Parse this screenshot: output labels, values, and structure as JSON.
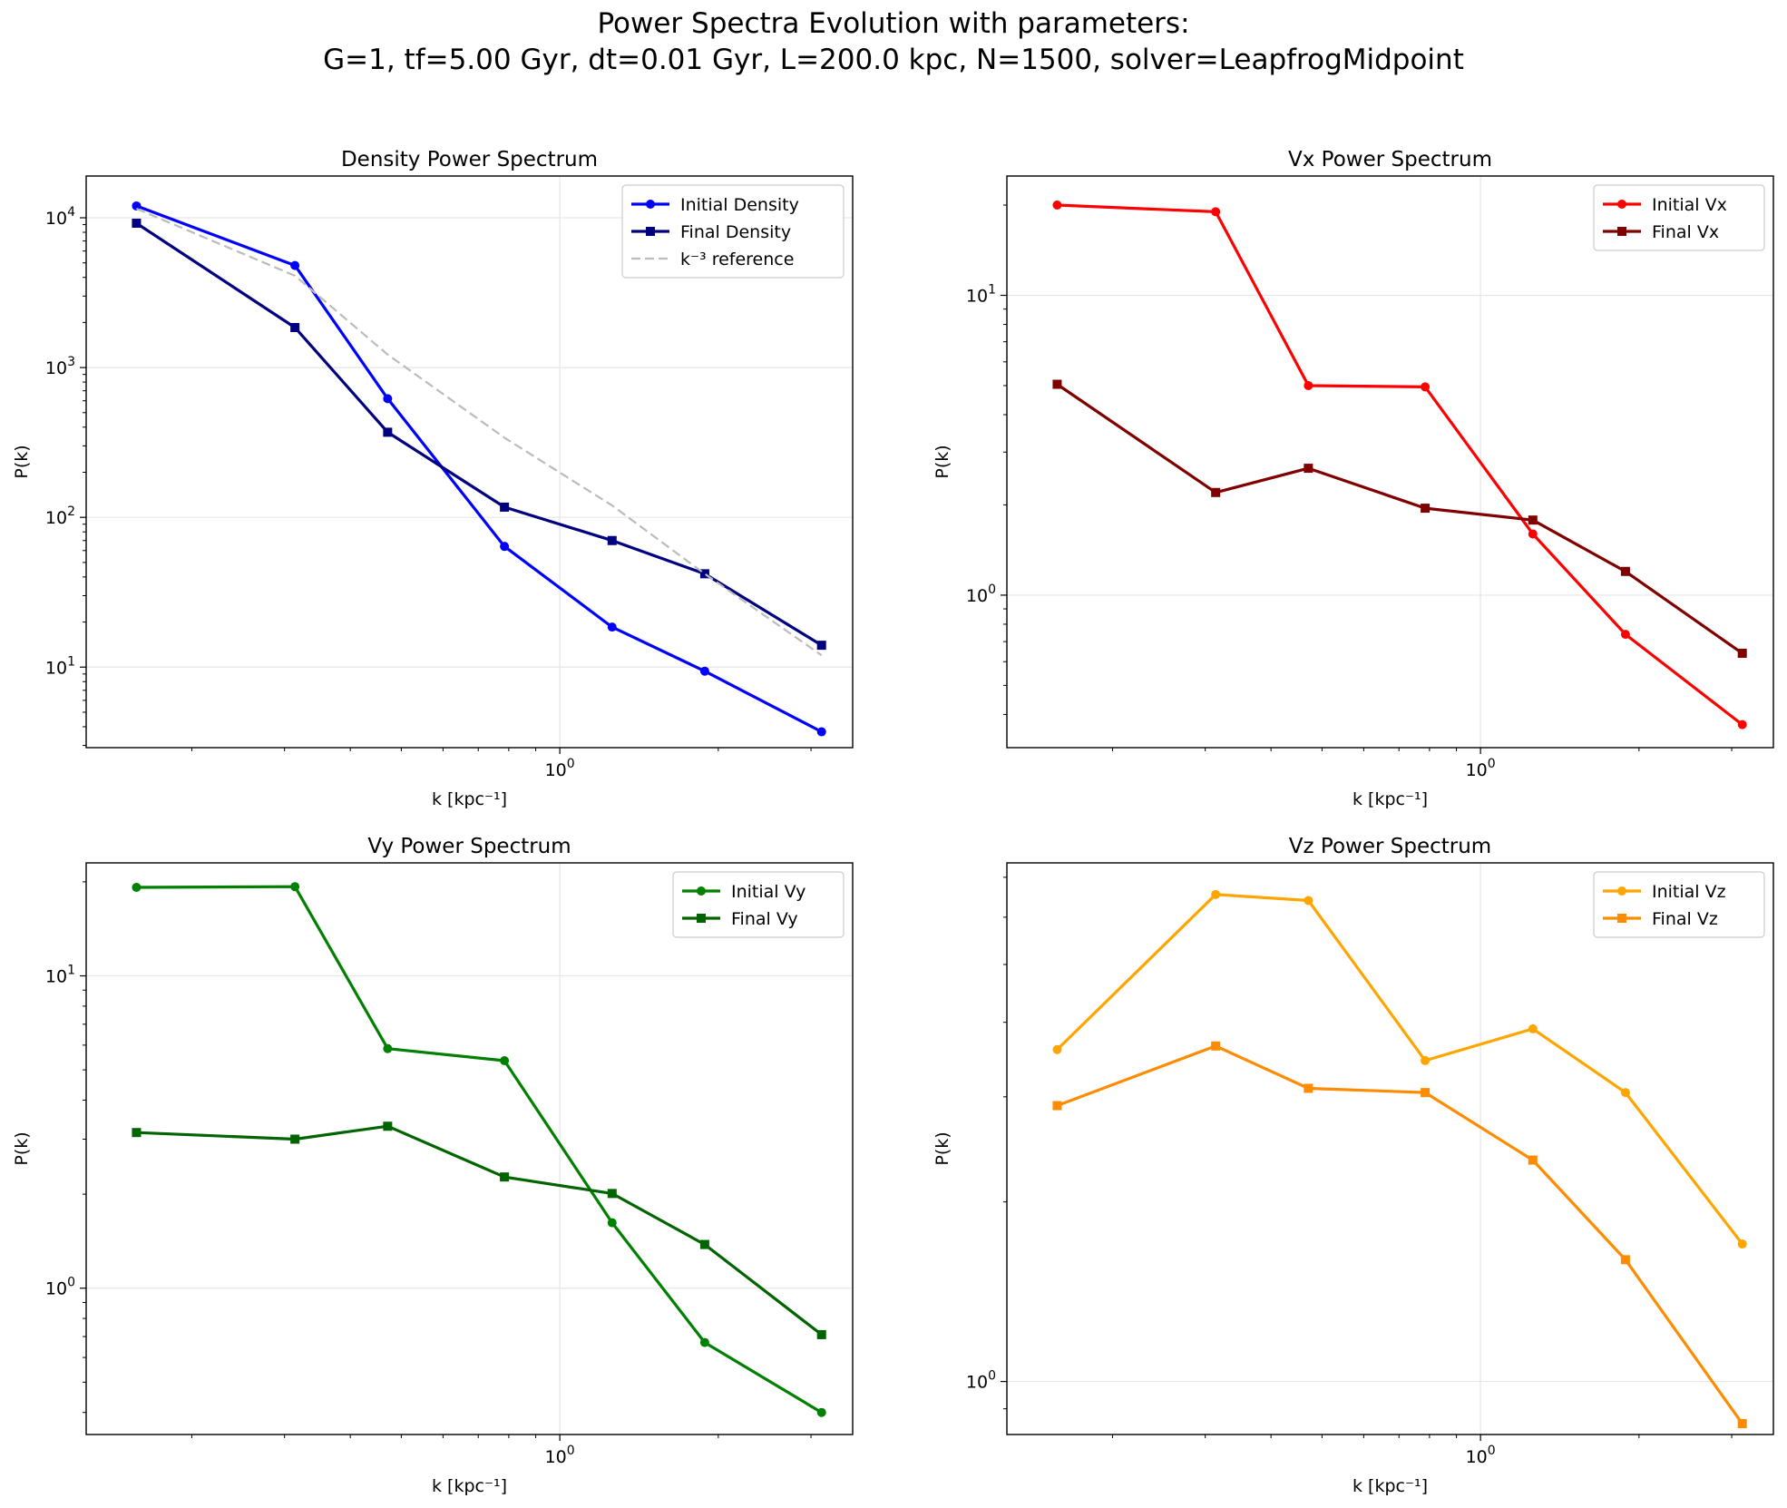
{
  "figure": {
    "title_line1": "Power Spectra Evolution with parameters:",
    "title_line2": "G=1, tf=5.00 Gyr, dt=0.01 Gyr, L=200.0 kpc, N=1500, solver=LeapfrogMidpoint"
  },
  "chart_data": [
    {
      "type": "line",
      "title": "Density Power Spectrum",
      "xlabel": "k [kpc⁻¹]",
      "ylabel": "P(k)",
      "xscale": "log",
      "yscale": "log",
      "xlim": [
        0.126,
        3.6
      ],
      "ylim": [
        2.9,
        19000
      ],
      "xticks": [
        {
          "v": 1,
          "base": "10",
          "exp": "0"
        }
      ],
      "yticks": [
        {
          "v": 10,
          "base": "10",
          "exp": "1"
        },
        {
          "v": 100,
          "base": "10",
          "exp": "2"
        },
        {
          "v": 1000,
          "base": "10",
          "exp": "3"
        },
        {
          "v": 10000,
          "base": "10",
          "exp": "4"
        }
      ],
      "grid": true,
      "legend_position": "top-right",
      "x": [
        0.157,
        0.314,
        0.471,
        0.785,
        1.257,
        1.885,
        3.142
      ],
      "series": [
        {
          "name": "Initial Density",
          "color": "#0000ff",
          "marker": "circle",
          "style": "solid",
          "values": [
            12000,
            4800,
            620,
            64,
            18.5,
            9.4,
            3.7
          ]
        },
        {
          "name": "Final Density",
          "color": "#000080",
          "marker": "square",
          "style": "solid",
          "values": [
            9200,
            1850,
            370,
            117,
            70,
            42,
            14
          ]
        },
        {
          "name": "k⁻³ reference",
          "color": "#bbbbbb",
          "marker": "none",
          "style": "dashed",
          "values": [
            11500,
            4100,
            1220,
            340,
            120,
            42,
            12
          ]
        }
      ]
    },
    {
      "type": "line",
      "title": "Vx Power Spectrum",
      "xlabel": "k [kpc⁻¹]",
      "ylabel": "P(k)",
      "xscale": "log",
      "yscale": "log",
      "xlim": [
        0.126,
        3.6
      ],
      "ylim": [
        0.31,
        25
      ],
      "xticks": [
        {
          "v": 1,
          "base": "10",
          "exp": "0"
        }
      ],
      "yticks": [
        {
          "v": 1,
          "base": "10",
          "exp": "0"
        },
        {
          "v": 10,
          "base": "10",
          "exp": "1"
        }
      ],
      "grid": true,
      "legend_position": "top-right",
      "x": [
        0.157,
        0.314,
        0.471,
        0.785,
        1.257,
        1.885,
        3.142
      ],
      "series": [
        {
          "name": "Initial Vx",
          "color": "#ff0000",
          "marker": "circle",
          "style": "solid",
          "values": [
            20,
            19,
            5,
            4.95,
            1.6,
            0.74,
            0.37
          ]
        },
        {
          "name": "Final Vx",
          "color": "#800000",
          "marker": "square",
          "style": "solid",
          "values": [
            5.05,
            2.2,
            2.65,
            1.95,
            1.78,
            1.2,
            0.64
          ]
        }
      ]
    },
    {
      "type": "line",
      "title": "Vy Power Spectrum",
      "xlabel": "k [kpc⁻¹]",
      "ylabel": "P(k)",
      "xscale": "log",
      "yscale": "log",
      "xlim": [
        0.126,
        3.6
      ],
      "ylim": [
        0.34,
        23
      ],
      "xticks": [
        {
          "v": 1,
          "base": "10",
          "exp": "0"
        }
      ],
      "yticks": [
        {
          "v": 1,
          "base": "10",
          "exp": "0"
        },
        {
          "v": 10,
          "base": "10",
          "exp": "1"
        }
      ],
      "grid": true,
      "legend_position": "top-right",
      "x": [
        0.157,
        0.314,
        0.471,
        0.785,
        1.257,
        1.885,
        3.142
      ],
      "series": [
        {
          "name": "Initial Vy",
          "color": "#008000",
          "marker": "circle",
          "style": "solid",
          "values": [
            19.2,
            19.3,
            5.85,
            5.35,
            1.62,
            0.67,
            0.4
          ]
        },
        {
          "name": "Final Vy",
          "color": "#006400",
          "marker": "square",
          "style": "solid",
          "values": [
            3.15,
            3,
            3.3,
            2.27,
            2.01,
            1.38,
            0.71
          ]
        }
      ]
    },
    {
      "type": "line",
      "title": "Vz Power Spectrum",
      "xlabel": "k [kpc⁻¹]",
      "ylabel": "P(k)",
      "xscale": "log",
      "yscale": "log",
      "xlim": [
        0.126,
        3.6
      ],
      "ylim": [
        0.815,
        7.4
      ],
      "xticks": [
        {
          "v": 1,
          "base": "10",
          "exp": "0"
        }
      ],
      "yticks": [
        {
          "v": 1,
          "base": "10",
          "exp": "0"
        }
      ],
      "grid": true,
      "legend_position": "top-right",
      "x": [
        0.157,
        0.314,
        0.471,
        0.785,
        1.257,
        1.885,
        3.142
      ],
      "series": [
        {
          "name": "Initial Vz",
          "color": "#ffa500",
          "marker": "circle",
          "style": "solid",
          "values": [
            3.6,
            6.55,
            6.4,
            3.45,
            3.9,
            3.05,
            1.7
          ]
        },
        {
          "name": "Final Vz",
          "color": "#ff8c00",
          "marker": "square",
          "style": "solid",
          "values": [
            2.9,
            3.65,
            3.1,
            3.05,
            2.35,
            1.6,
            0.85
          ]
        }
      ]
    }
  ]
}
